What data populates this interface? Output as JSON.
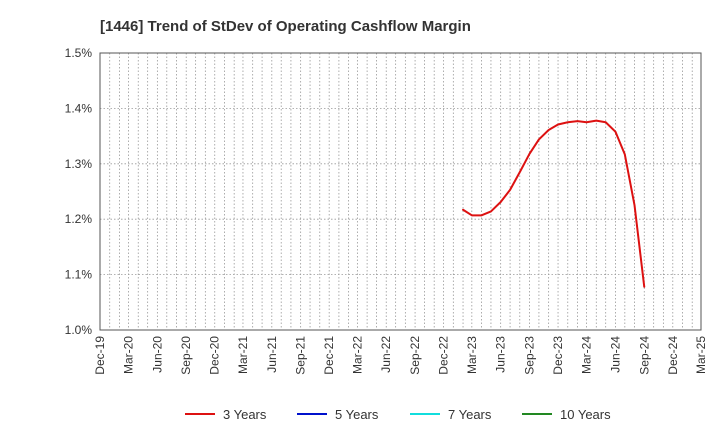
{
  "chart_data": {
    "type": "line",
    "title": "[1446]  Trend of StDev of Operating Cashflow Margin",
    "xlabel": "",
    "ylabel": "",
    "ylim": [
      1.0,
      1.5
    ],
    "y_ticks": [
      "1.0%",
      "1.1%",
      "1.2%",
      "1.3%",
      "1.4%",
      "1.5%"
    ],
    "x_ticks": [
      "Dec-19",
      "Mar-20",
      "Jun-20",
      "Sep-20",
      "Dec-20",
      "Mar-21",
      "Jun-21",
      "Sep-21",
      "Dec-21",
      "Mar-22",
      "Jun-22",
      "Sep-22",
      "Dec-22",
      "Mar-23",
      "Jun-23",
      "Sep-23",
      "Dec-23",
      "Mar-24",
      "Jun-24",
      "Sep-24",
      "Dec-24",
      "Mar-25"
    ],
    "grid": true,
    "legend_position": "bottom",
    "series": [
      {
        "name": "3 Years",
        "color": "#dd1111",
        "x": [
          "2023-02",
          "2023-03",
          "2023-04",
          "2023-05",
          "2023-06",
          "2023-07",
          "2023-08",
          "2023-09",
          "2023-10",
          "2023-11",
          "2023-12",
          "2024-01",
          "2024-02",
          "2024-03",
          "2024-04",
          "2024-05",
          "2024-06",
          "2024-07",
          "2024-08",
          "2024-09"
        ],
        "values": [
          1.217,
          1.207,
          1.207,
          1.214,
          1.231,
          1.253,
          1.285,
          1.318,
          1.344,
          1.361,
          1.371,
          1.375,
          1.377,
          1.375,
          1.378,
          1.375,
          1.358,
          1.317,
          1.225,
          1.078
        ]
      },
      {
        "name": "5 Years",
        "color": "#0011cc",
        "x": [],
        "values": []
      },
      {
        "name": "7 Years",
        "color": "#11dddd",
        "x": [],
        "values": []
      },
      {
        "name": "10 Years",
        "color": "#228822",
        "x": [],
        "values": []
      }
    ]
  }
}
